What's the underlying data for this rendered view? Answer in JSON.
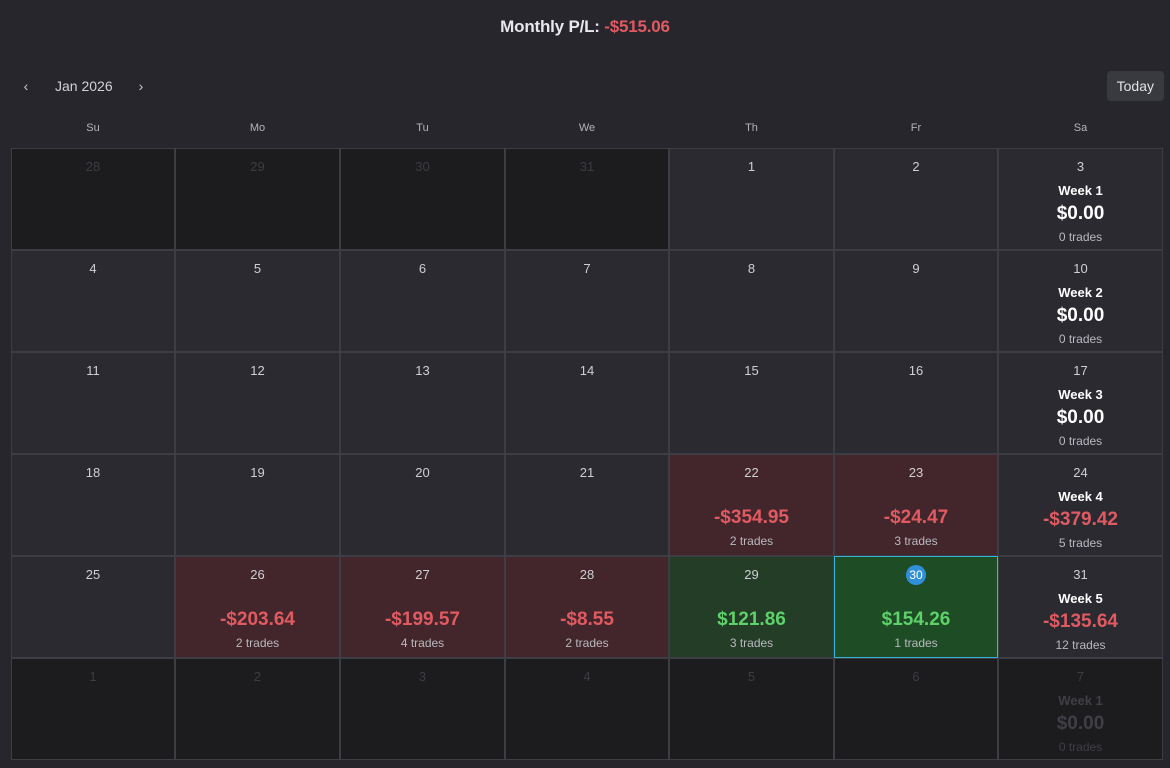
{
  "header": {
    "label": "Monthly P/L:",
    "value": "-$515.06"
  },
  "nav": {
    "prev_icon": "chevron-left-icon",
    "next_icon": "chevron-right-icon",
    "prev_glyph": "‹",
    "next_glyph": "›",
    "month": "Jan 2026",
    "today_label": "Today"
  },
  "weekdays": [
    "Su",
    "Mo",
    "Tu",
    "We",
    "Th",
    "Fr",
    "Sa"
  ],
  "colors": {
    "negative": "#e05a62",
    "positive": "#5fd16b",
    "today_border": "#36b2db",
    "today_badge": "#2f8fd8"
  },
  "weeks": [
    {
      "days": [
        {
          "day": "28",
          "out": true
        },
        {
          "day": "29",
          "out": true
        },
        {
          "day": "30",
          "out": true
        },
        {
          "day": "31",
          "out": true
        },
        {
          "day": "1"
        },
        {
          "day": "2"
        }
      ],
      "summary": {
        "day": "3",
        "label": "Week 1",
        "pl": "$0.00",
        "trades": "0 trades",
        "tone": "zero"
      }
    },
    {
      "days": [
        {
          "day": "4"
        },
        {
          "day": "5"
        },
        {
          "day": "6"
        },
        {
          "day": "7"
        },
        {
          "day": "8"
        },
        {
          "day": "9"
        }
      ],
      "summary": {
        "day": "10",
        "label": "Week 2",
        "pl": "$0.00",
        "trades": "0 trades",
        "tone": "zero"
      }
    },
    {
      "days": [
        {
          "day": "11"
        },
        {
          "day": "12"
        },
        {
          "day": "13"
        },
        {
          "day": "14"
        },
        {
          "day": "15"
        },
        {
          "day": "16"
        }
      ],
      "summary": {
        "day": "17",
        "label": "Week 3",
        "pl": "$0.00",
        "trades": "0 trades",
        "tone": "zero"
      }
    },
    {
      "days": [
        {
          "day": "18"
        },
        {
          "day": "19"
        },
        {
          "day": "20"
        },
        {
          "day": "21"
        },
        {
          "day": "22",
          "pl": "-$354.95",
          "trades": "2 trades",
          "tone": "neg"
        },
        {
          "day": "23",
          "pl": "-$24.47",
          "trades": "3 trades",
          "tone": "neg"
        }
      ],
      "summary": {
        "day": "24",
        "label": "Week 4",
        "pl": "-$379.42",
        "trades": "5 trades",
        "tone": "neg"
      }
    },
    {
      "days": [
        {
          "day": "25"
        },
        {
          "day": "26",
          "pl": "-$203.64",
          "trades": "2 trades",
          "tone": "neg"
        },
        {
          "day": "27",
          "pl": "-$199.57",
          "trades": "4 trades",
          "tone": "neg"
        },
        {
          "day": "28",
          "pl": "-$8.55",
          "trades": "2 trades",
          "tone": "neg"
        },
        {
          "day": "29",
          "pl": "$121.86",
          "trades": "3 trades",
          "tone": "pos"
        },
        {
          "day": "30",
          "pl": "$154.26",
          "trades": "1 trades",
          "tone": "pos",
          "today": true
        }
      ],
      "summary": {
        "day": "31",
        "label": "Week 5",
        "pl": "-$135.64",
        "trades": "12 trades",
        "tone": "neg"
      }
    },
    {
      "days": [
        {
          "day": "1",
          "out": true
        },
        {
          "day": "2",
          "out": true
        },
        {
          "day": "3",
          "out": true
        },
        {
          "day": "4",
          "out": true
        },
        {
          "day": "5",
          "out": true
        },
        {
          "day": "6",
          "out": true
        }
      ],
      "summary": {
        "day": "7",
        "label": "Week 1",
        "pl": "$0.00",
        "trades": "0 trades",
        "tone": "zero",
        "out": true
      }
    }
  ]
}
